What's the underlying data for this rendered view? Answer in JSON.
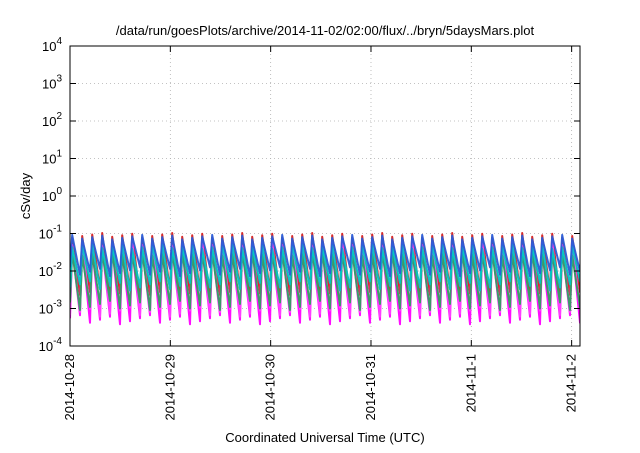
{
  "chart_data": {
    "type": "line",
    "title": "/data/run/goesPlots/archive/2014-11-02/02:00/flux/../bryn/5daysMars.plot",
    "xlabel": "Coordinated Universal Time (UTC)",
    "ylabel": "cSv/day",
    "yscale": "log",
    "ylim": [
      0.0001,
      10000
    ],
    "y_ticks": [
      {
        "value": 0.0001,
        "base": "10",
        "exp": "-4"
      },
      {
        "value": 0.001,
        "base": "10",
        "exp": "-3"
      },
      {
        "value": 0.01,
        "base": "10",
        "exp": "-2"
      },
      {
        "value": 0.1,
        "base": "10",
        "exp": "-1"
      },
      {
        "value": 1,
        "base": "10",
        "exp": "0"
      },
      {
        "value": 10,
        "base": "10",
        "exp": "1"
      },
      {
        "value": 100,
        "base": "10",
        "exp": "2"
      },
      {
        "value": 1000,
        "base": "10",
        "exp": "3"
      },
      {
        "value": 10000,
        "base": "10",
        "exp": "4"
      }
    ],
    "xlim": [
      "2014-10-28T00:00",
      "2014-11-02T02:00"
    ],
    "x_ticks": [
      "2014-10-28",
      "2014-10-29",
      "2014-10-30",
      "2014-10-31",
      "2014-11-1",
      "2014-11-2"
    ],
    "grid": true,
    "legend": "none",
    "sawtooth": {
      "cycles": 51,
      "shape": "rapid rise followed by gradual decay, repeating roughly every 2.4 hours"
    },
    "series": [
      {
        "color": "#d62020",
        "peak": 0.09,
        "trough": 0.0025
      },
      {
        "color": "#ff00ff",
        "peak": 0.04,
        "trough": 0.0005
      },
      {
        "color": "#ff40ff",
        "peak": 0.055,
        "trough": 0.0008
      },
      {
        "color": "#30a060",
        "peak": 0.03,
        "trough": 0.0012
      },
      {
        "color": "#00c8c8",
        "peak": 0.045,
        "trough": 0.004
      },
      {
        "color": "#2a5cd6",
        "peak": 0.08,
        "trough": 0.0095
      }
    ]
  }
}
